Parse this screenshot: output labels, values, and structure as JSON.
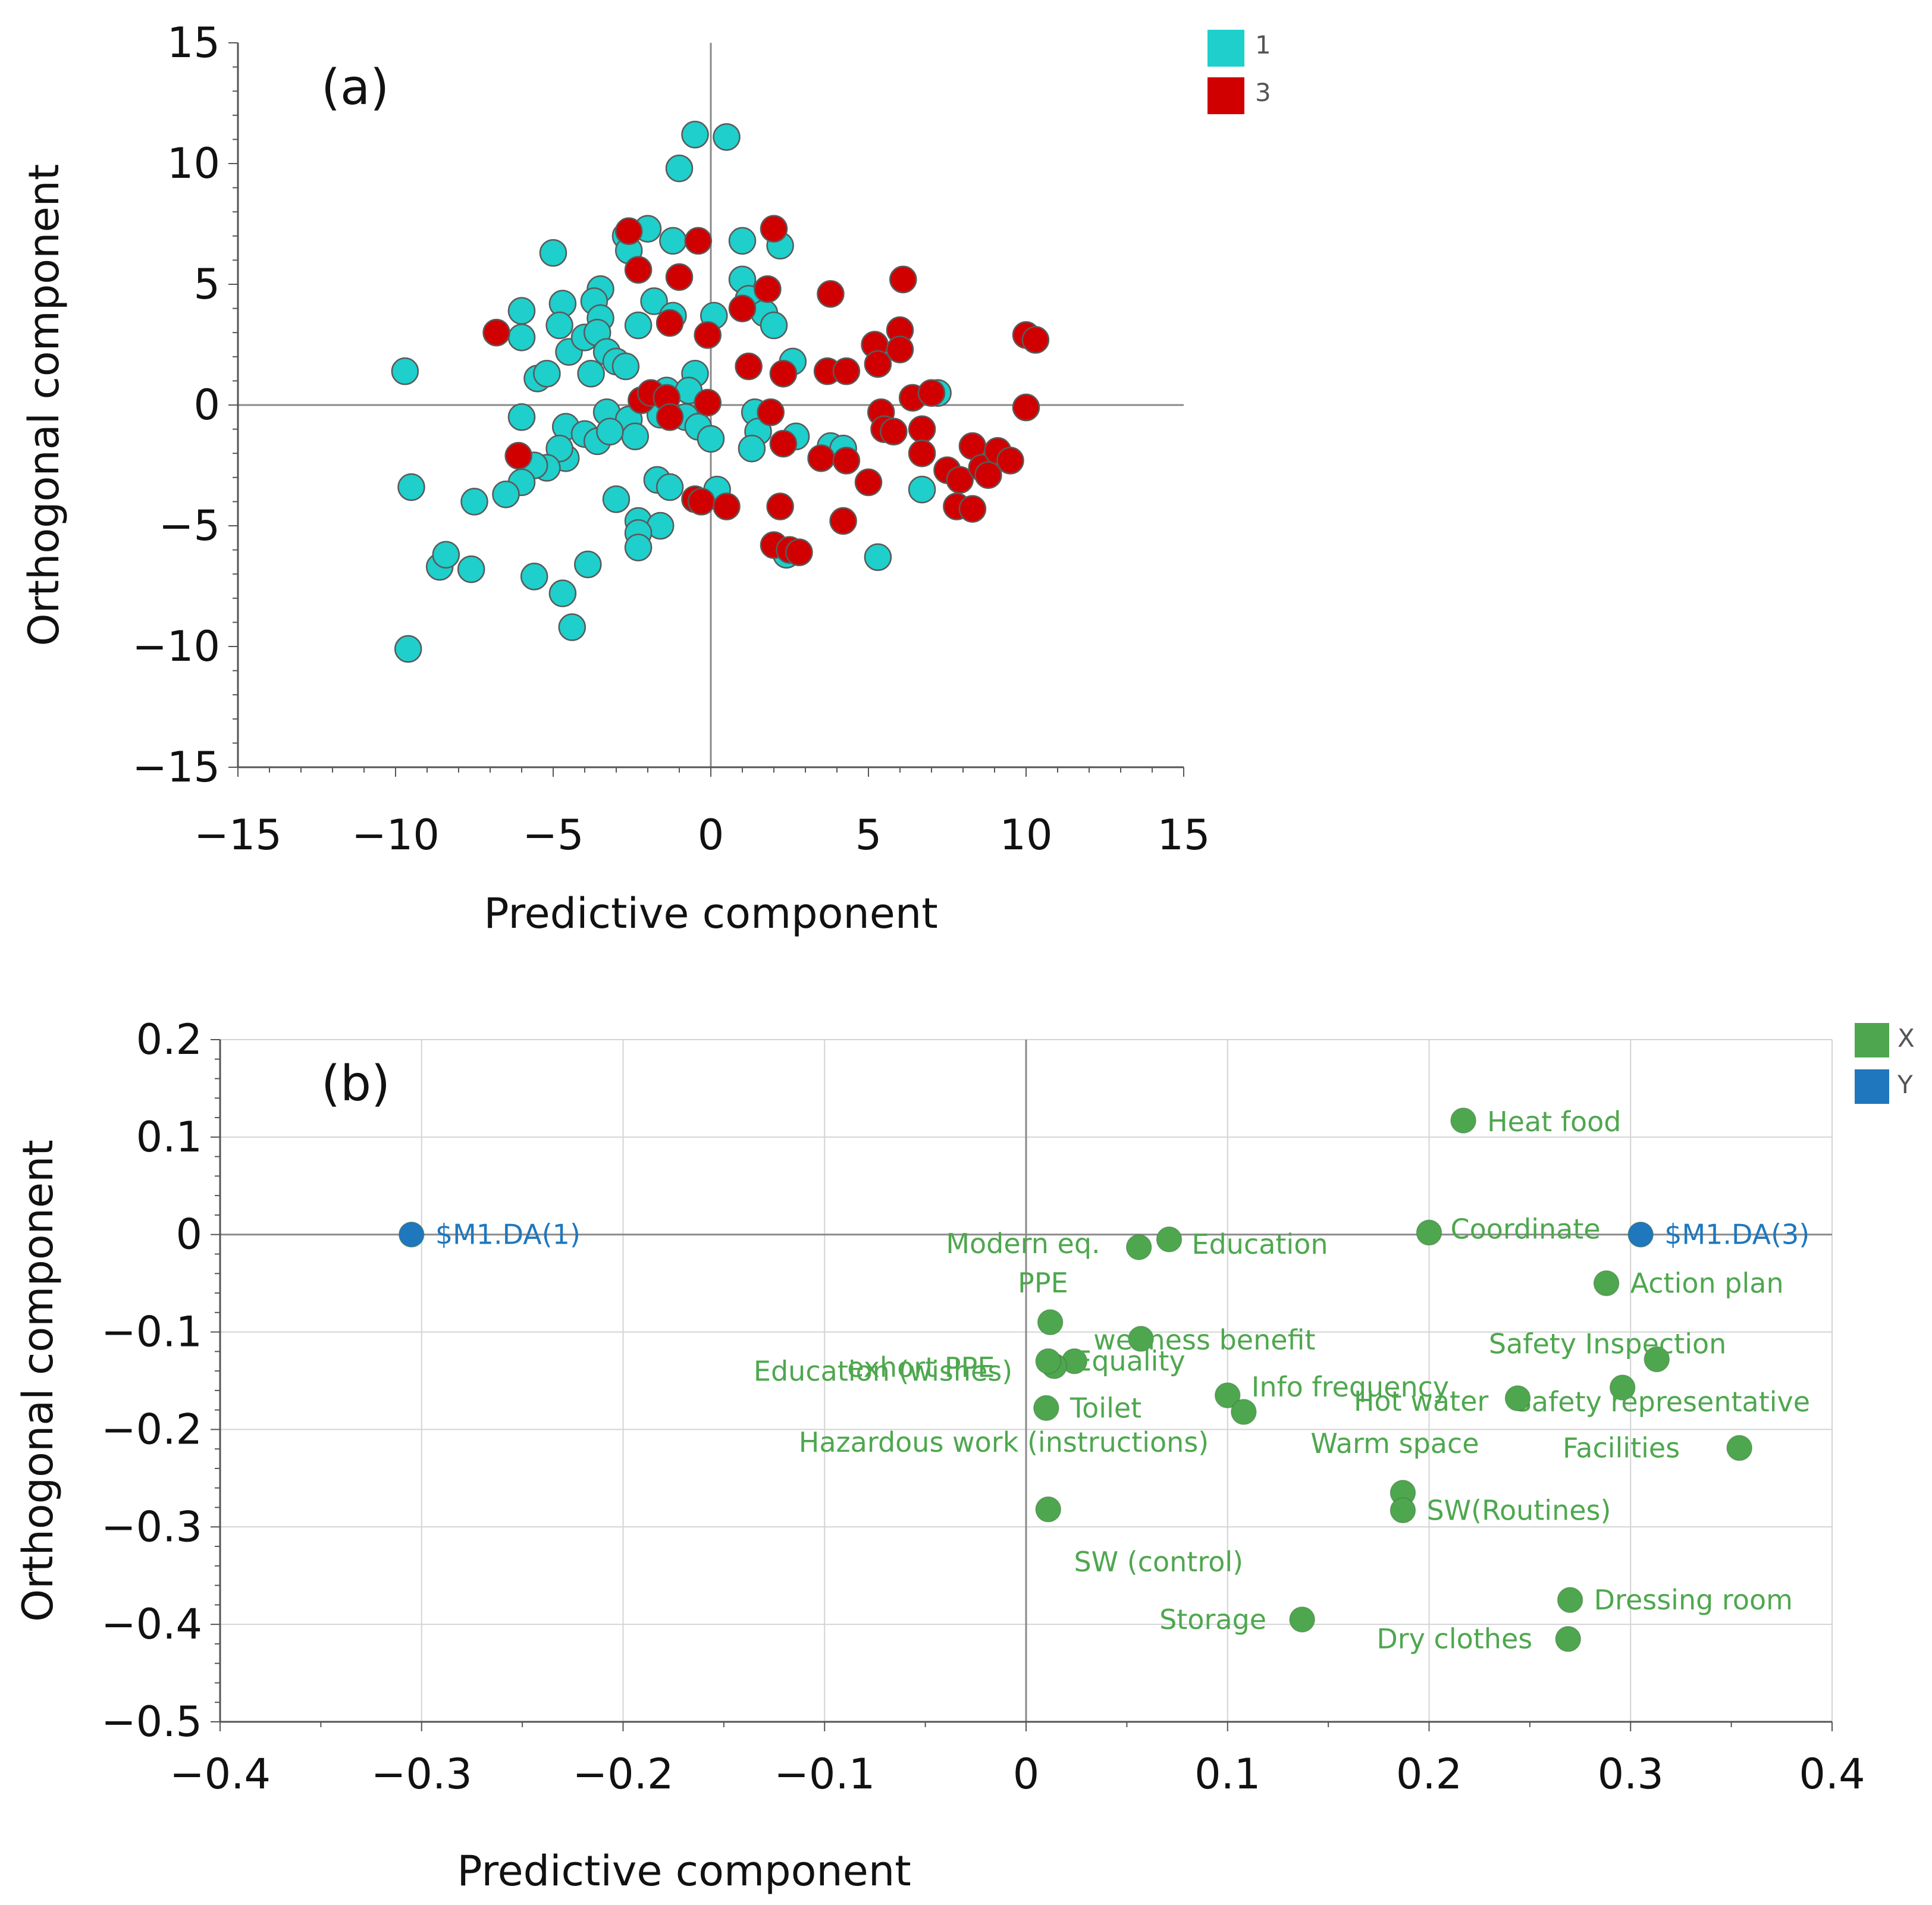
{
  "chart_data": [
    {
      "type": "scatter",
      "panel_label": "(a)",
      "xlabel": "Predictive component",
      "ylabel": "Orthogonal component",
      "xlim": [
        -15,
        15
      ],
      "ylim": [
        -15,
        15
      ],
      "xticks": [
        -15,
        -10,
        -5,
        0,
        5,
        10,
        15
      ],
      "yticks": [
        -15,
        -10,
        -5,
        0,
        5,
        10,
        15
      ],
      "tick_labels_x": [
        "−15",
        "−10",
        "−5",
        "0",
        "5",
        "10",
        "15"
      ],
      "tick_labels_y": [
        "−15",
        "−10",
        "−5",
        "0",
        "5",
        "10",
        "15"
      ],
      "legend_position": "top-right",
      "series": [
        {
          "name": "1",
          "color": "#1ECFCB",
          "points": [
            [
              -0.5,
              11.2
            ],
            [
              0.5,
              11.1
            ],
            [
              -1.0,
              9.8
            ],
            [
              -2.7,
              7.0
            ],
            [
              -2.6,
              6.4
            ],
            [
              -1.2,
              6.8
            ],
            [
              -2.0,
              7.3
            ],
            [
              1.0,
              6.8
            ],
            [
              2.2,
              6.6
            ],
            [
              -5.0,
              6.3
            ],
            [
              -3.5,
              4.8
            ],
            [
              -3.7,
              4.3
            ],
            [
              -4.7,
              4.2
            ],
            [
              -6.0,
              3.9
            ],
            [
              -4.8,
              3.3
            ],
            [
              -3.5,
              3.6
            ],
            [
              -2.3,
              3.3
            ],
            [
              -1.8,
              4.3
            ],
            [
              -1.2,
              3.7
            ],
            [
              0.1,
              3.7
            ],
            [
              1.0,
              5.2
            ],
            [
              1.2,
              4.4
            ],
            [
              1.7,
              3.8
            ],
            [
              2.0,
              3.3
            ],
            [
              -6.0,
              2.8
            ],
            [
              -4.5,
              2.2
            ],
            [
              -4.0,
              2.8
            ],
            [
              -3.6,
              3.0
            ],
            [
              -3.3,
              2.2
            ],
            [
              -3.0,
              1.8
            ],
            [
              -2.7,
              1.6
            ],
            [
              -3.8,
              1.3
            ],
            [
              -5.5,
              1.1
            ],
            [
              -5.2,
              1.3
            ],
            [
              -9.7,
              1.4
            ],
            [
              -1.4,
              0.6
            ],
            [
              -0.5,
              1.3
            ],
            [
              -0.7,
              0.6
            ],
            [
              2.6,
              1.8
            ],
            [
              7.2,
              0.5
            ],
            [
              -6.0,
              -0.5
            ],
            [
              -4.6,
              -0.9
            ],
            [
              -3.3,
              -0.3
            ],
            [
              -2.6,
              -0.6
            ],
            [
              -2.4,
              -1.3
            ],
            [
              -1.6,
              -0.4
            ],
            [
              -0.8,
              -0.5
            ],
            [
              -0.4,
              -0.9
            ],
            [
              0.0,
              -1.4
            ],
            [
              1.4,
              -0.3
            ],
            [
              1.5,
              -1.1
            ],
            [
              1.3,
              -1.8
            ],
            [
              2.7,
              -1.3
            ],
            [
              3.8,
              -1.7
            ],
            [
              4.2,
              -1.8
            ],
            [
              -4.0,
              -1.2
            ],
            [
              -3.6,
              -1.5
            ],
            [
              -3.2,
              -1.1
            ],
            [
              -4.6,
              -2.2
            ],
            [
              -4.8,
              -1.8
            ],
            [
              -5.2,
              -2.6
            ],
            [
              -5.6,
              -2.5
            ],
            [
              -6.0,
              -3.2
            ],
            [
              -6.5,
              -3.7
            ],
            [
              -7.5,
              -4.0
            ],
            [
              -9.5,
              -3.4
            ],
            [
              -3.0,
              -3.9
            ],
            [
              -1.7,
              -3.1
            ],
            [
              -1.3,
              -3.4
            ],
            [
              0.2,
              -3.5
            ],
            [
              6.7,
              -3.5
            ],
            [
              -2.3,
              -4.8
            ],
            [
              -1.6,
              -5.0
            ],
            [
              -2.3,
              -5.3
            ],
            [
              -2.3,
              -5.9
            ],
            [
              -4.7,
              -7.8
            ],
            [
              -5.6,
              -7.1
            ],
            [
              -7.6,
              -6.8
            ],
            [
              -8.6,
              -6.7
            ],
            [
              -8.4,
              -6.2
            ],
            [
              -3.9,
              -6.6
            ],
            [
              -4.4,
              -9.2
            ],
            [
              -9.6,
              -10.1
            ],
            [
              2.4,
              -6.2
            ],
            [
              5.3,
              -6.3
            ]
          ]
        },
        {
          "name": "3",
          "color": "#D10000",
          "points": [
            [
              -2.6,
              7.2
            ],
            [
              -2.3,
              5.6
            ],
            [
              -0.4,
              6.8
            ],
            [
              2.0,
              7.3
            ],
            [
              -1.0,
              5.3
            ],
            [
              1.8,
              4.8
            ],
            [
              1.0,
              4.0
            ],
            [
              3.8,
              4.6
            ],
            [
              6.1,
              5.2
            ],
            [
              -6.8,
              3.0
            ],
            [
              -1.3,
              3.4
            ],
            [
              -0.1,
              2.9
            ],
            [
              5.2,
              2.5
            ],
            [
              6.0,
              3.1
            ],
            [
              10.0,
              2.9
            ],
            [
              10.3,
              2.7
            ],
            [
              1.2,
              1.6
            ],
            [
              2.3,
              1.3
            ],
            [
              3.7,
              1.4
            ],
            [
              4.3,
              1.4
            ],
            [
              5.3,
              1.7
            ],
            [
              6.0,
              2.3
            ],
            [
              -2.2,
              0.2
            ],
            [
              -1.9,
              0.5
            ],
            [
              -1.4,
              0.3
            ],
            [
              -1.3,
              -0.5
            ],
            [
              1.9,
              -0.3
            ],
            [
              5.4,
              -0.3
            ],
            [
              6.4,
              0.3
            ],
            [
              7.0,
              0.5
            ],
            [
              10.0,
              -0.1
            ],
            [
              -6.1,
              -2.1
            ],
            [
              2.3,
              -1.6
            ],
            [
              3.5,
              -2.2
            ],
            [
              4.3,
              -2.3
            ],
            [
              5.0,
              -3.2
            ],
            [
              5.5,
              -1.0
            ],
            [
              5.8,
              -1.1
            ],
            [
              6.7,
              -1.0
            ],
            [
              6.7,
              -2.0
            ],
            [
              7.5,
              -2.7
            ],
            [
              7.9,
              -3.1
            ],
            [
              8.3,
              -1.7
            ],
            [
              8.6,
              -2.6
            ],
            [
              8.8,
              -2.9
            ],
            [
              9.1,
              -1.9
            ],
            [
              9.5,
              -2.3
            ],
            [
              7.8,
              -4.2
            ],
            [
              8.3,
              -4.3
            ],
            [
              -0.5,
              -3.9
            ],
            [
              -0.3,
              -4.0
            ],
            [
              0.5,
              -4.2
            ],
            [
              2.2,
              -4.2
            ],
            [
              2.0,
              -5.8
            ],
            [
              2.5,
              -6.0
            ],
            [
              2.8,
              -6.1
            ],
            [
              4.2,
              -4.8
            ],
            [
              -0.1,
              0.1
            ]
          ]
        }
      ]
    },
    {
      "type": "scatter",
      "panel_label": "(b)",
      "xlabel": "Predictive component",
      "ylabel": "Orthogonal component",
      "xlim": [
        -0.4,
        0.4
      ],
      "ylim": [
        -0.5,
        0.2
      ],
      "xticks": [
        -0.4,
        -0.3,
        -0.2,
        -0.1,
        0,
        0.1,
        0.2,
        0.3,
        0.4
      ],
      "yticks": [
        -0.5,
        -0.4,
        -0.3,
        -0.2,
        -0.1,
        0,
        0.1,
        0.2
      ],
      "tick_labels_x": [
        "−0.4",
        "−0.3",
        "−0.2",
        "−0.1",
        "0",
        "0.1",
        "0.2",
        "0.3",
        "0.4"
      ],
      "tick_labels_y": [
        "−0.5",
        "−0.4",
        "−0.3",
        "−0.2",
        "−0.1",
        "0",
        "0.1",
        "0.2"
      ],
      "grid": true,
      "legend_position": "top-right",
      "series": [
        {
          "name": "X",
          "color": "#4EA74E",
          "points": [
            {
              "label": "Heat food",
              "x": 0.217,
              "y": 0.117
            },
            {
              "label": "Coordinate",
              "x": 0.2,
              "y": 0.002
            },
            {
              "label": "Education",
              "x": 0.071,
              "y": -0.005
            },
            {
              "label": "Modern eq.",
              "x": 0.056,
              "y": -0.013
            },
            {
              "label": "PPE",
              "x": 0.012,
              "y": -0.09
            },
            {
              "label": "wellness benefit",
              "x": 0.057,
              "y": -0.107
            },
            {
              "label": "Equality",
              "x": 0.024,
              "y": -0.13
            },
            {
              "label": "exhort PPE",
              "x": 0.014,
              "y": -0.135
            },
            {
              "label": "Education (wishes)",
              "x": 0.011,
              "y": -0.13
            },
            {
              "label": "Toilet",
              "x": 0.01,
              "y": -0.178
            },
            {
              "label": "Info frequency",
              "x": 0.1,
              "y": -0.165
            },
            {
              "label": "Hot water",
              "x": 0.108,
              "y": -0.182
            },
            {
              "label": "Hazardous work (instructions)",
              "x": 0.011,
              "y": -0.282
            },
            {
              "label": "Action plan",
              "x": 0.288,
              "y": -0.05
            },
            {
              "label": "Safety Inspection",
              "x": 0.313,
              "y": -0.128
            },
            {
              "label": "Safety representative",
              "x": 0.296,
              "y": -0.157
            },
            {
              "label": "Warm space",
              "x": 0.244,
              "y": -0.168
            },
            {
              "label": "Facilities",
              "x": 0.354,
              "y": -0.219
            },
            {
              "label": "SW (control)",
              "x": 0.187,
              "y": -0.265
            },
            {
              "label": "SW(Routines)",
              "x": 0.187,
              "y": -0.283
            },
            {
              "label": "Dressing room",
              "x": 0.27,
              "y": -0.375
            },
            {
              "label": "Dry clothes",
              "x": 0.269,
              "y": -0.415
            },
            {
              "label": "Storage",
              "x": 0.137,
              "y": -0.395
            }
          ]
        },
        {
          "name": "Y",
          "color": "#1F77BD",
          "points": [
            {
              "label": "$M1.DA(1)",
              "x": -0.305,
              "y": 0.0
            },
            {
              "label": "$M1.DA(3)",
              "x": 0.305,
              "y": 0.0
            }
          ]
        }
      ]
    }
  ]
}
